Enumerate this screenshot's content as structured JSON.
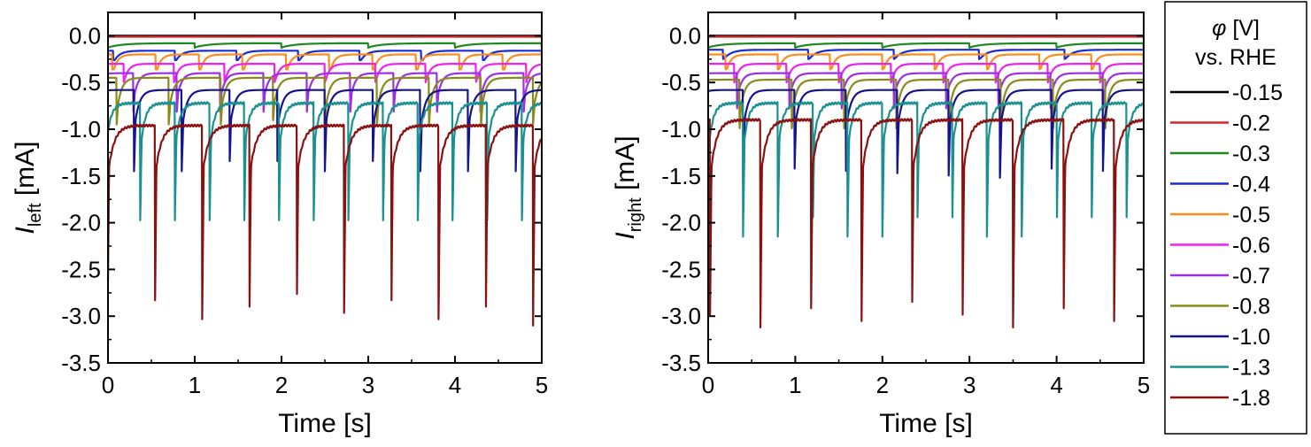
{
  "chart_data": [
    {
      "id": "left",
      "type": "line",
      "xlabel": "Time [s]",
      "ylabel_main": "I",
      "ylabel_sub": "left",
      "ylabel_unit": " [mA]",
      "xlim": [
        0,
        5
      ],
      "ylim": [
        -3.5,
        0.25
      ],
      "xticks": [
        "0",
        "1",
        "2",
        "3",
        "4",
        "5"
      ],
      "xtick_values": [
        0,
        1,
        2,
        3,
        4,
        5
      ],
      "yticks": [
        "0.0",
        "-0.5",
        "-1.0",
        "-1.5",
        "-2.0",
        "-2.5",
        "-3.0",
        "-3.5"
      ],
      "ytick_values": [
        0,
        -0.5,
        -1.0,
        -1.5,
        -2.0,
        -2.5,
        -3.0,
        -3.5
      ],
      "series": [
        {
          "name": "-0.15",
          "color": "#000000",
          "period": 1.0,
          "phase": 0.0,
          "base": 0.0,
          "peak": 0.0,
          "rise": 0.5,
          "spike": 0.0
        },
        {
          "name": "-0.2",
          "color": "#d62728",
          "period": 1.0,
          "phase": 0.0,
          "base": -0.01,
          "peak": -0.01,
          "rise": 0.5,
          "spike": 0.0
        },
        {
          "name": "-0.3",
          "color": "#1f8a1f",
          "period": 1.0,
          "phase": 0.0,
          "base": -0.12,
          "peak": -0.08,
          "rise": 0.5,
          "spike": -0.13
        },
        {
          "name": "-0.4",
          "color": "#1a2bd6",
          "period": 0.71,
          "phase": 0.06,
          "base": -0.26,
          "peak": -0.16,
          "rise": 0.2,
          "spike": -0.26
        },
        {
          "name": "-0.5",
          "color": "#ff8c1a",
          "period": 0.5,
          "phase": 0.05,
          "base": -0.36,
          "peak": -0.2,
          "rise": 0.15,
          "spike": -0.36
        },
        {
          "name": "-0.6",
          "color": "#ee22ee",
          "period": 0.58,
          "phase": 0.18,
          "base": -0.45,
          "peak": -0.3,
          "rise": 0.15,
          "spike": -0.5
        },
        {
          "name": "-0.7",
          "color": "#9b30e0",
          "period": 0.5,
          "phase": 0.29,
          "base": -0.62,
          "peak": -0.4,
          "rise": 0.15,
          "spike": -0.85
        },
        {
          "name": "-0.8",
          "color": "#8a8a1a",
          "period": 0.6,
          "phase": 0.1,
          "base": -0.72,
          "peak": -0.45,
          "rise": 0.15,
          "spike": -0.95
        },
        {
          "name": "-1.0",
          "color": "#14148c",
          "period": 0.55,
          "phase": 0.3,
          "base": -0.9,
          "peak": -0.58,
          "rise": 0.16,
          "spike": -1.45
        },
        {
          "name": "-1.3",
          "color": "#1a9090",
          "period": 0.4,
          "phase": 0.37,
          "base": -1.1,
          "peak": -0.72,
          "rise": 0.15,
          "spike": -2.05
        },
        {
          "name": "-1.8",
          "color": "#8b1010",
          "period": 0.545,
          "phase": 0.54,
          "base": -1.4,
          "peak": -0.96,
          "rise": 0.2,
          "spike": -3.1
        }
      ]
    },
    {
      "id": "right",
      "type": "line",
      "xlabel": "Time [s]",
      "ylabel_main": "I",
      "ylabel_sub": "right",
      "ylabel_unit": " [mA]",
      "xlim": [
        0,
        5
      ],
      "ylim": [
        -3.5,
        0.25
      ],
      "xticks": [
        "0",
        "1",
        "2",
        "3",
        "4",
        "5"
      ],
      "xtick_values": [
        0,
        1,
        2,
        3,
        4,
        5
      ],
      "yticks": [
        "0.0",
        "-0.5",
        "-1.0",
        "-1.5",
        "-2.0",
        "-2.5",
        "-3.0",
        "-3.5"
      ],
      "ytick_values": [
        0,
        -0.5,
        -1.0,
        -1.5,
        -2.0,
        -2.5,
        -3.0,
        -3.5
      ],
      "series": [
        {
          "name": "-0.15",
          "color": "#000000",
          "period": 1.0,
          "phase": 0.0,
          "base": 0.0,
          "peak": 0.0,
          "rise": 0.5,
          "spike": 0.0
        },
        {
          "name": "-0.2",
          "color": "#d62728",
          "period": 1.0,
          "phase": 0.0,
          "base": -0.01,
          "peak": -0.01,
          "rise": 0.5,
          "spike": 0.0
        },
        {
          "name": "-0.3",
          "color": "#1f8a1f",
          "period": 1.0,
          "phase": 0.0,
          "base": -0.12,
          "peak": -0.08,
          "rise": 0.5,
          "spike": -0.13
        },
        {
          "name": "-0.4",
          "color": "#1a2bd6",
          "period": 0.98,
          "phase": 0.17,
          "base": -0.24,
          "peak": -0.15,
          "rise": 0.25,
          "spike": -0.25
        },
        {
          "name": "-0.5",
          "color": "#ff8c1a",
          "period": 0.6,
          "phase": 0.2,
          "base": -0.35,
          "peak": -0.2,
          "rise": 0.15,
          "spike": -0.36
        },
        {
          "name": "-0.6",
          "color": "#ee22ee",
          "period": 0.6,
          "phase": 0.3,
          "base": -0.45,
          "peak": -0.3,
          "rise": 0.15,
          "spike": -0.5
        },
        {
          "name": "-0.7",
          "color": "#9b30e0",
          "period": 0.6,
          "phase": 0.33,
          "base": -0.6,
          "peak": -0.4,
          "rise": 0.15,
          "spike": -0.8
        },
        {
          "name": "-0.8",
          "color": "#8a8a1a",
          "period": 0.6,
          "phase": 0.36,
          "base": -0.75,
          "peak": -0.47,
          "rise": 0.15,
          "spike": -1.0
        },
        {
          "name": "-1.0",
          "color": "#14148c",
          "period": 0.59,
          "phase": 0.4,
          "base": -0.9,
          "peak": -0.58,
          "rise": 0.16,
          "spike": -1.52
        },
        {
          "name": "-1.3",
          "color": "#1a9090",
          "period": 0.4,
          "phase": 0.4,
          "base": -1.1,
          "peak": -0.72,
          "rise": 0.15,
          "spike": -2.15
        },
        {
          "name": "-1.8",
          "color": "#8b1010",
          "period": 0.58,
          "phase": 0.6,
          "base": -1.4,
          "peak": -0.9,
          "rise": 0.2,
          "spike": -3.12
        }
      ]
    }
  ],
  "legend": {
    "title_symbol": "φ",
    "title_unit": " [V]",
    "title_line2": "vs. RHE",
    "entries": [
      "-0.15",
      "-0.2",
      "-0.3",
      "-0.4",
      "-0.5",
      "-0.6",
      "-0.7",
      "-0.8",
      "-1.0",
      "-1.3",
      "-1.8"
    ],
    "colors": [
      "#000000",
      "#d62728",
      "#1f8a1f",
      "#1a2bd6",
      "#ff8c1a",
      "#ee22ee",
      "#9b30e0",
      "#8a8a1a",
      "#14148c",
      "#1a9090",
      "#8b1010"
    ]
  }
}
